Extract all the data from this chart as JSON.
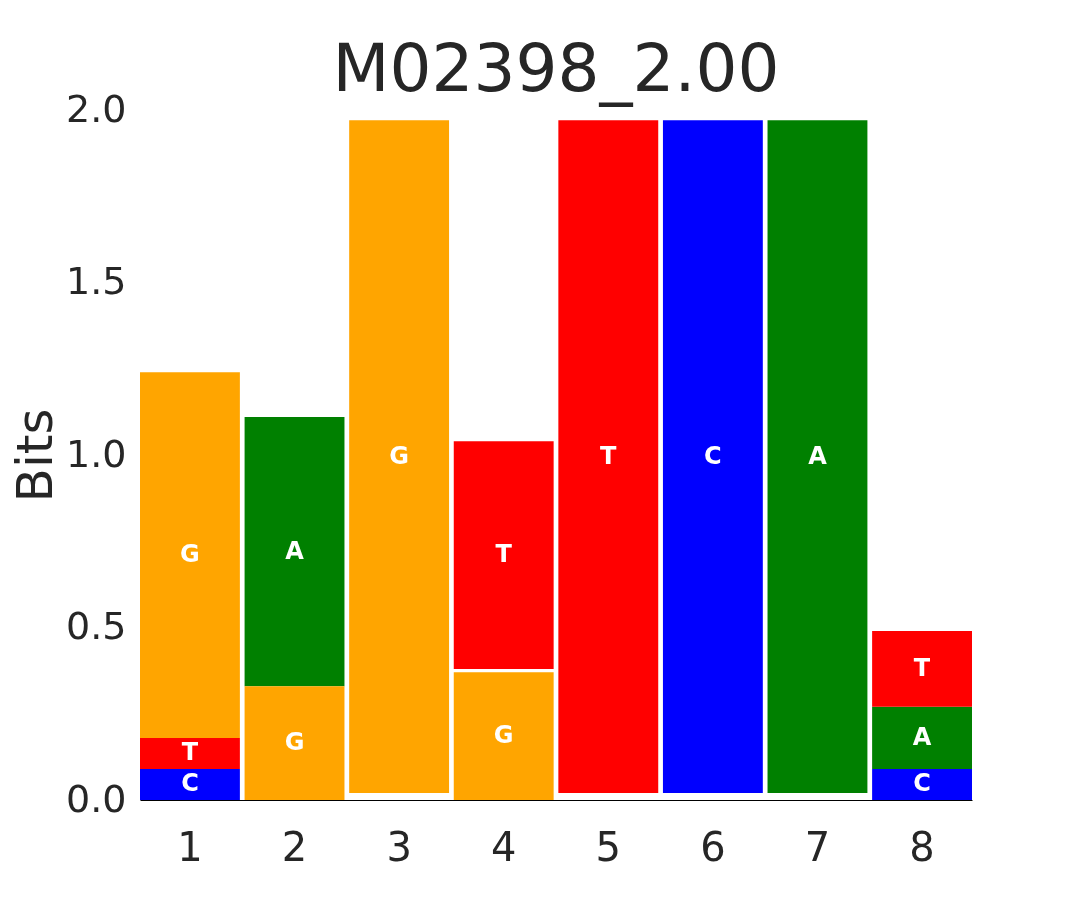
{
  "chart_data": {
    "type": "bar",
    "title": "M02398_2.00",
    "ylabel": "Bits",
    "categories": [
      "1",
      "2",
      "3",
      "4",
      "5",
      "6",
      "7",
      "8"
    ],
    "series": [
      {
        "name": "A",
        "color": "#008000",
        "values": [
          null,
          0.78,
          null,
          null,
          null,
          null,
          1.95,
          0.18
        ],
        "base": [
          null,
          0.33,
          null,
          null,
          null,
          null,
          0.02,
          0.09
        ]
      },
      {
        "name": "C",
        "color": "#0000ff",
        "values": [
          0.09,
          null,
          null,
          null,
          null,
          1.95,
          null,
          0.09
        ],
        "base": [
          0,
          null,
          null,
          null,
          null,
          0.02,
          null,
          0
        ]
      },
      {
        "name": "G",
        "color": "#ffa500",
        "values": [
          1.06,
          0.33,
          1.95,
          0.37,
          null,
          null,
          null,
          null
        ],
        "base": [
          0.18,
          0,
          0.02,
          0,
          null,
          null,
          null,
          null
        ]
      },
      {
        "name": "T",
        "color": "#ff0000",
        "values": [
          0.09,
          null,
          null,
          0.66,
          1.95,
          null,
          null,
          0.22
        ],
        "base": [
          0.09,
          null,
          null,
          0.38,
          0.02,
          null,
          null,
          0.27
        ]
      }
    ],
    "ylim": [
      0,
      2
    ],
    "yticks": [
      {
        "value": 0,
        "label": "0.0"
      },
      {
        "value": 0.5,
        "label": "0.5"
      },
      {
        "value": 1,
        "label": "1.0"
      },
      {
        "value": 1.5,
        "label": "1.5"
      },
      {
        "value": 2,
        "label": "2.0"
      }
    ]
  }
}
